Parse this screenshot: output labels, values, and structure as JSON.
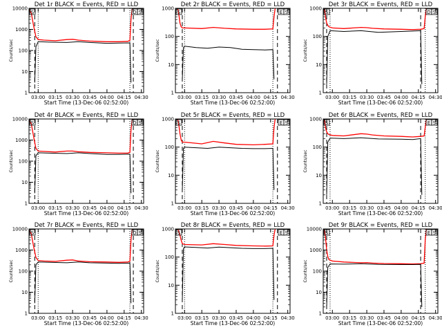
{
  "figure": {
    "background": "#ffffff",
    "black_color": "#000000",
    "red_color": "#ff0000"
  },
  "chart_data": [
    {
      "type": "line",
      "title": "Det 1r BLACK = Events, RED = LLD",
      "xlabel": "Start Time (13-Dec-06 02:52:00)",
      "ylabel": "Counts/sec",
      "xlim": [
        "02:52",
        "04:32"
      ],
      "ylim": [
        1,
        10000
      ],
      "y_scale": "log",
      "xticks": [
        "03:00",
        "03:15",
        "03:30",
        "03:45",
        "04:00",
        "04:15",
        "04:30"
      ],
      "yticks": [
        "1",
        "10",
        "100",
        "1000",
        "10000"
      ],
      "corner_markers": [
        "S",
        "D",
        "S"
      ],
      "dotted_lines": [
        "03:00",
        "04:20"
      ],
      "dashed_lines": [
        "02:57",
        "04:23"
      ],
      "series": [
        {
          "color": "#ff0000",
          "x": [
            "02:52",
            "02:54",
            "02:56",
            "02:58",
            "03:00",
            "03:05",
            "03:15",
            "03:25",
            "03:30",
            "03:35",
            "03:45",
            "04:00",
            "04:10",
            "04:18",
            "04:20",
            "04:21",
            "04:22"
          ],
          "y": [
            9000,
            6000,
            1500,
            450,
            330,
            310,
            290,
            330,
            340,
            310,
            280,
            260,
            260,
            270,
            300,
            3000,
            10000
          ]
        },
        {
          "color": "#000000",
          "x": [
            "02:57",
            "02:58",
            "03:00",
            "03:10",
            "03:25",
            "03:35",
            "03:45",
            "04:00",
            "04:10",
            "04:20",
            "04:21"
          ],
          "y": [
            3,
            150,
            260,
            250,
            240,
            260,
            240,
            220,
            225,
            230,
            3
          ]
        }
      ]
    },
    {
      "type": "line",
      "title": "Det 2r BLACK = Events, RED = LLD",
      "xlabel": "Start Time (13-Dec-06 02:52:00)",
      "ylabel": "Counts/sec",
      "xlim": [
        "02:52",
        "04:32"
      ],
      "ylim": [
        1,
        1000
      ],
      "y_scale": "log",
      "xticks": [
        "03:00",
        "03:15",
        "03:30",
        "03:45",
        "04:00",
        "04:15",
        "04:30"
      ],
      "yticks": [
        "1",
        "10",
        "100",
        "1000"
      ],
      "corner_markers": [
        "S",
        "E",
        "S"
      ],
      "dotted_lines": [
        "03:00",
        "04:17"
      ],
      "dashed_lines": [
        "02:58",
        "04:21"
      ],
      "series": [
        {
          "color": "#ff0000",
          "x": [
            "02:54",
            "02:55",
            "02:56",
            "02:57",
            "02:58",
            "03:00",
            "03:15",
            "03:25",
            "03:35",
            "03:45",
            "04:00",
            "04:10",
            "04:17",
            "04:18",
            "04:19"
          ],
          "y": [
            1000,
            600,
            300,
            220,
            200,
            200,
            190,
            210,
            195,
            185,
            180,
            180,
            185,
            500,
            1000
          ]
        },
        {
          "color": "#000000",
          "x": [
            "02:58",
            "02:59",
            "03:00",
            "03:10",
            "03:20",
            "03:30",
            "03:40",
            "03:50",
            "04:00",
            "04:10",
            "04:17",
            "04:18"
          ],
          "y": [
            3,
            40,
            45,
            40,
            38,
            42,
            40,
            35,
            34,
            33,
            34,
            3
          ]
        }
      ]
    },
    {
      "type": "line",
      "title": "Det 3r BLACK = Events, RED = LLD",
      "xlabel": "Start Time (13-Dec-06 02:52:00)",
      "ylabel": "Counts/sec",
      "xlim": [
        "02:52",
        "04:32"
      ],
      "ylim": [
        1,
        1000
      ],
      "y_scale": "log",
      "xticks": [
        "03:00",
        "03:15",
        "03:30",
        "03:45",
        "04:00",
        "04:15",
        "04:30"
      ],
      "yticks": [
        "1",
        "10",
        "100",
        "1000"
      ],
      "corner_markers": [
        "S",
        "D",
        "S"
      ],
      "dotted_lines": [
        "02:58",
        "04:21"
      ],
      "dashed_lines": [
        "02:55",
        "04:17"
      ],
      "series": [
        {
          "color": "#ff0000",
          "x": [
            "02:53",
            "02:54",
            "02:55",
            "02:56",
            "02:57",
            "03:00",
            "03:10",
            "03:25",
            "03:30",
            "03:35",
            "03:45",
            "04:00",
            "04:10",
            "04:17",
            "04:20",
            "04:21",
            "04:22"
          ],
          "y": [
            1000,
            500,
            300,
            250,
            220,
            200,
            190,
            210,
            205,
            195,
            185,
            180,
            175,
            180,
            190,
            500,
            1000
          ]
        },
        {
          "color": "#000000",
          "x": [
            "02:55",
            "02:56",
            "02:58",
            "03:10",
            "03:25",
            "03:40",
            "04:00",
            "04:10",
            "04:17",
            "04:18"
          ],
          "y": [
            2,
            100,
            160,
            150,
            160,
            140,
            150,
            155,
            160,
            2
          ]
        }
      ]
    },
    {
      "type": "line",
      "title": "Det 4r BLACK = Events, RED = LLD",
      "xlabel": "Start Time (13-Dec-06 02:52:00)",
      "ylabel": "Counts/sec",
      "xlim": [
        "02:52",
        "04:32"
      ],
      "ylim": [
        1,
        10000
      ],
      "y_scale": "log",
      "xticks": [
        "03:00",
        "03:15",
        "03:30",
        "03:45",
        "04:00",
        "04:15",
        "04:30"
      ],
      "yticks": [
        "1",
        "10",
        "100",
        "1000",
        "10000"
      ],
      "corner_markers": [
        "S",
        "D",
        "S"
      ],
      "dotted_lines": [
        "03:00",
        "04:20"
      ],
      "dashed_lines": [
        "02:57",
        "04:23"
      ],
      "series": [
        {
          "color": "#ff0000",
          "x": [
            "02:52",
            "02:54",
            "02:56",
            "02:58",
            "03:00",
            "03:05",
            "03:15",
            "03:25",
            "03:30",
            "03:35",
            "03:45",
            "04:00",
            "04:10",
            "04:18",
            "04:20",
            "04:21",
            "04:22"
          ],
          "y": [
            9000,
            6000,
            1500,
            400,
            300,
            290,
            270,
            300,
            300,
            280,
            260,
            250,
            240,
            240,
            260,
            3000,
            10000
          ]
        },
        {
          "color": "#000000",
          "x": [
            "02:57",
            "02:58",
            "03:00",
            "03:10",
            "03:25",
            "03:35",
            "03:45",
            "04:00",
            "04:10",
            "04:20",
            "04:21"
          ],
          "y": [
            3,
            180,
            250,
            240,
            230,
            250,
            230,
            210,
            210,
            215,
            3
          ]
        }
      ]
    },
    {
      "type": "line",
      "title": "Det 5r BLACK = Events, RED = LLD",
      "xlabel": "Start Time (13-Dec-06 02:52:00)",
      "ylabel": "Counts/sec",
      "xlim": [
        "02:52",
        "04:32"
      ],
      "ylim": [
        1,
        1000
      ],
      "y_scale": "log",
      "xticks": [
        "03:00",
        "03:15",
        "03:30",
        "03:45",
        "04:00",
        "04:15",
        "04:30"
      ],
      "yticks": [
        "1",
        "10",
        "100",
        "1000"
      ],
      "corner_markers": [
        "S",
        "E",
        "S"
      ],
      "dotted_lines": [
        "03:00",
        "04:17"
      ],
      "dashed_lines": [
        "02:58",
        "04:21"
      ],
      "series": [
        {
          "color": "#ff0000",
          "x": [
            "02:54",
            "02:55",
            "02:56",
            "02:57",
            "02:58",
            "03:00",
            "03:15",
            "03:25",
            "03:35",
            "03:45",
            "04:00",
            "04:10",
            "04:17",
            "04:18",
            "04:19"
          ],
          "y": [
            1000,
            600,
            300,
            180,
            150,
            150,
            130,
            160,
            140,
            125,
            120,
            125,
            130,
            500,
            1000
          ]
        },
        {
          "color": "#000000",
          "x": [
            "02:58",
            "02:59",
            "03:00",
            "03:10",
            "03:20",
            "03:30",
            "03:40",
            "03:50",
            "04:00",
            "04:10",
            "04:17",
            "04:18"
          ],
          "y": [
            3,
            90,
            100,
            95,
            90,
            100,
            95,
            90,
            88,
            88,
            90,
            3
          ]
        }
      ]
    },
    {
      "type": "line",
      "title": "Det 6r BLACK = Events, RED = LLD",
      "xlabel": "Start Time (13-Dec-06 02:52:00)",
      "ylabel": "Counts/sec",
      "xlim": [
        "02:52",
        "04:32"
      ],
      "ylim": [
        1,
        1000
      ],
      "y_scale": "log",
      "xticks": [
        "03:00",
        "03:15",
        "03:30",
        "03:45",
        "04:00",
        "04:15",
        "04:30"
      ],
      "yticks": [
        "1",
        "10",
        "100",
        "1000"
      ],
      "corner_markers": [
        "S",
        "E",
        "S"
      ],
      "dotted_lines": [
        "02:58",
        "04:21"
      ],
      "dashed_lines": [
        "02:55",
        "04:17"
      ],
      "series": [
        {
          "color": "#ff0000",
          "x": [
            "02:53",
            "02:54",
            "02:55",
            "02:56",
            "02:57",
            "03:00",
            "03:10",
            "03:25",
            "03:30",
            "03:35",
            "03:45",
            "04:00",
            "04:10",
            "04:17",
            "04:20",
            "04:21",
            "04:22"
          ],
          "y": [
            1000,
            500,
            350,
            300,
            280,
            260,
            250,
            300,
            290,
            270,
            250,
            240,
            230,
            240,
            250,
            500,
            1000
          ]
        },
        {
          "color": "#000000",
          "x": [
            "02:55",
            "02:56",
            "02:58",
            "03:10",
            "03:25",
            "03:40",
            "04:00",
            "04:10",
            "04:17",
            "04:18"
          ],
          "y": [
            2,
            150,
            210,
            200,
            215,
            195,
            190,
            185,
            200,
            2
          ]
        }
      ]
    },
    {
      "type": "line",
      "title": "Det 7r BLACK = Events, RED = LLD",
      "xlabel": "Start Time (13-Dec-06 02:52:00)",
      "ylabel": "Counts/sec",
      "xlim": [
        "02:52",
        "04:32"
      ],
      "ylim": [
        1,
        10000
      ],
      "y_scale": "log",
      "xticks": [
        "03:00",
        "03:15",
        "03:30",
        "03:45",
        "04:00",
        "04:15",
        "04:30"
      ],
      "yticks": [
        "1",
        "10",
        "100",
        "1000",
        "10000"
      ],
      "corner_markers": [
        "S",
        "D",
        "S"
      ],
      "dotted_lines": [
        "03:00",
        "04:20"
      ],
      "dashed_lines": [
        "02:57",
        "04:23"
      ],
      "series": [
        {
          "color": "#ff0000",
          "x": [
            "02:52",
            "02:54",
            "02:56",
            "02:58",
            "03:00",
            "03:05",
            "03:15",
            "03:25",
            "03:30",
            "03:35",
            "03:45",
            "04:00",
            "04:10",
            "04:18",
            "04:20",
            "04:21",
            "04:22"
          ],
          "y": [
            9000,
            6000,
            1500,
            450,
            320,
            300,
            290,
            330,
            340,
            300,
            280,
            270,
            260,
            270,
            290,
            3000,
            10000
          ]
        },
        {
          "color": "#000000",
          "x": [
            "02:57",
            "02:58",
            "03:00",
            "03:10",
            "03:25",
            "03:35",
            "03:45",
            "04:00",
            "04:10",
            "04:20",
            "04:21"
          ],
          "y": [
            3,
            200,
            270,
            260,
            250,
            270,
            250,
            240,
            235,
            240,
            3
          ]
        }
      ]
    },
    {
      "type": "line",
      "title": "Det 8r BLACK = Events, RED = LLD",
      "xlabel": "Start Time (13-Dec-06 02:52:00)",
      "ylabel": "Counts/sec",
      "xlim": [
        "02:52",
        "04:32"
      ],
      "ylim": [
        1,
        1000
      ],
      "y_scale": "log",
      "xticks": [
        "03:00",
        "03:15",
        "03:30",
        "03:45",
        "04:00",
        "04:15",
        "04:30"
      ],
      "yticks": [
        "1",
        "10",
        "100",
        "1000"
      ],
      "corner_markers": [
        "S",
        "E",
        "S"
      ],
      "dotted_lines": [
        "03:00",
        "04:17"
      ],
      "dashed_lines": [
        "02:58",
        "04:21"
      ],
      "series": [
        {
          "color": "#ff0000",
          "x": [
            "02:54",
            "02:55",
            "02:56",
            "02:57",
            "02:58",
            "03:00",
            "03:15",
            "03:25",
            "03:35",
            "03:45",
            "04:00",
            "04:10",
            "04:17",
            "04:18",
            "04:19"
          ],
          "y": [
            1000,
            800,
            600,
            400,
            300,
            280,
            270,
            300,
            280,
            260,
            250,
            245,
            250,
            600,
            1000
          ]
        },
        {
          "color": "#000000",
          "x": [
            "02:58",
            "02:59",
            "03:00",
            "03:10",
            "03:20",
            "03:30",
            "03:40",
            "03:50",
            "04:00",
            "04:10",
            "04:17",
            "04:18"
          ],
          "y": [
            3,
            200,
            230,
            220,
            210,
            225,
            215,
            205,
            200,
            200,
            205,
            3
          ]
        }
      ]
    },
    {
      "type": "line",
      "title": "Det 9r BLACK = Events, RED = LLD",
      "xlabel": "Start Time (13-Dec-06 02:52:00)",
      "ylabel": "Counts/sec",
      "xlim": [
        "02:52",
        "04:32"
      ],
      "ylim": [
        1,
        10000
      ],
      "y_scale": "log",
      "xticks": [
        "03:00",
        "03:15",
        "03:30",
        "03:45",
        "04:00",
        "04:15",
        "04:30"
      ],
      "yticks": [
        "1",
        "10",
        "100",
        "1000",
        "10000"
      ],
      "corner_markers": [
        "S",
        "E",
        "S"
      ],
      "dotted_lines": [
        "02:58",
        "04:21"
      ],
      "dashed_lines": [
        "02:55",
        "04:17"
      ],
      "series": [
        {
          "color": "#ff0000",
          "x": [
            "02:53",
            "02:54",
            "02:55",
            "02:56",
            "02:57",
            "03:00",
            "03:10",
            "03:25",
            "03:30",
            "03:35",
            "03:45",
            "04:00",
            "04:10",
            "04:17",
            "04:20",
            "04:21",
            "04:22"
          ],
          "y": [
            9000,
            4000,
            1000,
            500,
            350,
            300,
            270,
            250,
            255,
            240,
            230,
            225,
            220,
            225,
            240,
            3000,
            10000
          ]
        },
        {
          "color": "#000000",
          "x": [
            "02:55",
            "02:56",
            "02:58",
            "03:10",
            "03:25",
            "03:40",
            "04:00",
            "04:10",
            "04:17",
            "04:18"
          ],
          "y": [
            2,
            150,
            220,
            215,
            225,
            210,
            205,
            205,
            210,
            2
          ]
        }
      ]
    }
  ]
}
